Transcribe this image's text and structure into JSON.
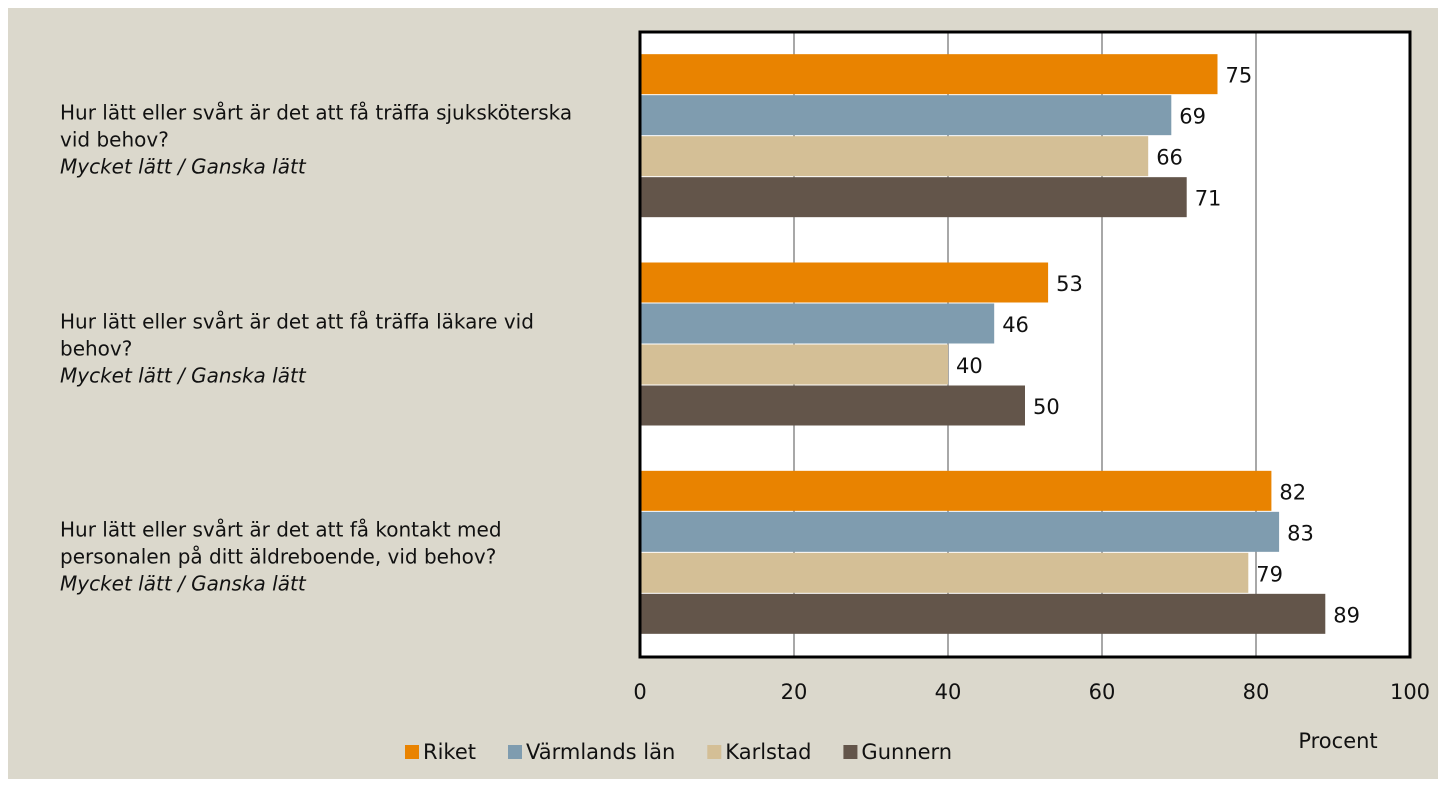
{
  "chart_data": {
    "type": "barh",
    "categories": [
      "Hur lätt eller svårt är det att få träffa sjuksköterska vid behov?",
      "Hur lätt eller svårt är det att få träffa läkare vid behov?",
      "Hur lätt eller svårt är det att få kontakt med personalen på ditt äldreboende, vid behov?"
    ],
    "category_notes": [
      "Mycket lätt / Ganska lätt",
      "Mycket lätt / Ganska lätt",
      "Mycket lätt / Ganska lätt"
    ],
    "series": [
      {
        "name": "Riket",
        "color": "#e98300",
        "values": [
          75,
          53,
          82
        ]
      },
      {
        "name": "Värmlands län",
        "color": "#7f9caf",
        "values": [
          69,
          46,
          83
        ]
      },
      {
        "name": "Karlstad",
        "color": "#d4bf96",
        "values": [
          66,
          40,
          79
        ]
      },
      {
        "name": "Gunnern",
        "color": "#63554a",
        "values": [
          71,
          50,
          89
        ]
      }
    ],
    "xlabel": "Procent",
    "xlim": [
      0,
      100
    ],
    "xticks": [
      0,
      20,
      40,
      60,
      80,
      100
    ],
    "grid": true,
    "legend": "bottom"
  }
}
